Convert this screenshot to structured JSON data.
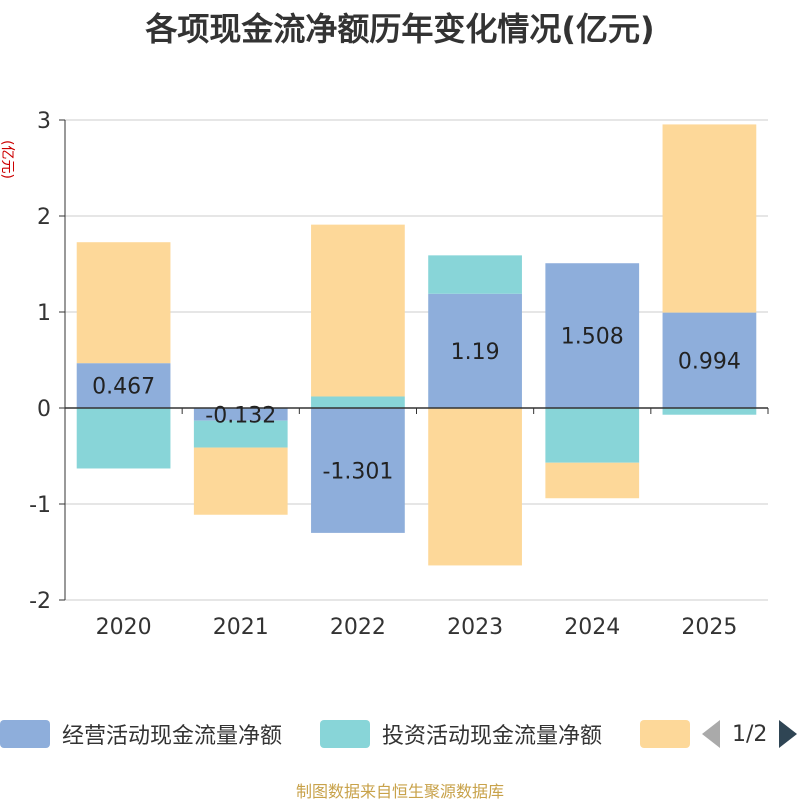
{
  "title": "各项现金流净额历年变化情况(亿元)",
  "y_unit": "(亿元)",
  "legend": {
    "items": [
      {
        "label": "经营活动现金流量净额",
        "color": "#8eaedb"
      },
      {
        "label": "投资活动现金流量净额",
        "color": "#88d5d8"
      },
      {
        "label": "",
        "color": "#fdd899"
      }
    ],
    "page": "1/2"
  },
  "source": "制图数据来自恒生聚源数据库",
  "chart_data": {
    "type": "bar",
    "stacked": true,
    "categories": [
      "2020",
      "2021",
      "2022",
      "2023",
      "2024",
      "2025"
    ],
    "series": [
      {
        "name": "经营活动现金流量净额",
        "color": "#8eaedb",
        "values": [
          0.467,
          -0.132,
          -1.301,
          1.19,
          1.508,
          0.994
        ],
        "labels": [
          "0.467",
          "-0.132",
          "-1.301",
          "1.19",
          "1.508",
          "0.994"
        ]
      },
      {
        "name": "投资活动现金流量净额",
        "color": "#88d5d8",
        "values": [
          -0.63,
          -0.28,
          0.12,
          0.4,
          -0.57,
          -0.07
        ]
      },
      {
        "color": "#fdd899",
        "values": [
          1.26,
          -0.7,
          1.79,
          -1.64,
          -0.37,
          1.96
        ]
      }
    ],
    "ylim": [
      -2,
      3
    ],
    "yticks": [
      -2,
      -1,
      0,
      1,
      2,
      3
    ],
    "grid": true,
    "legend_position": "bottom"
  }
}
